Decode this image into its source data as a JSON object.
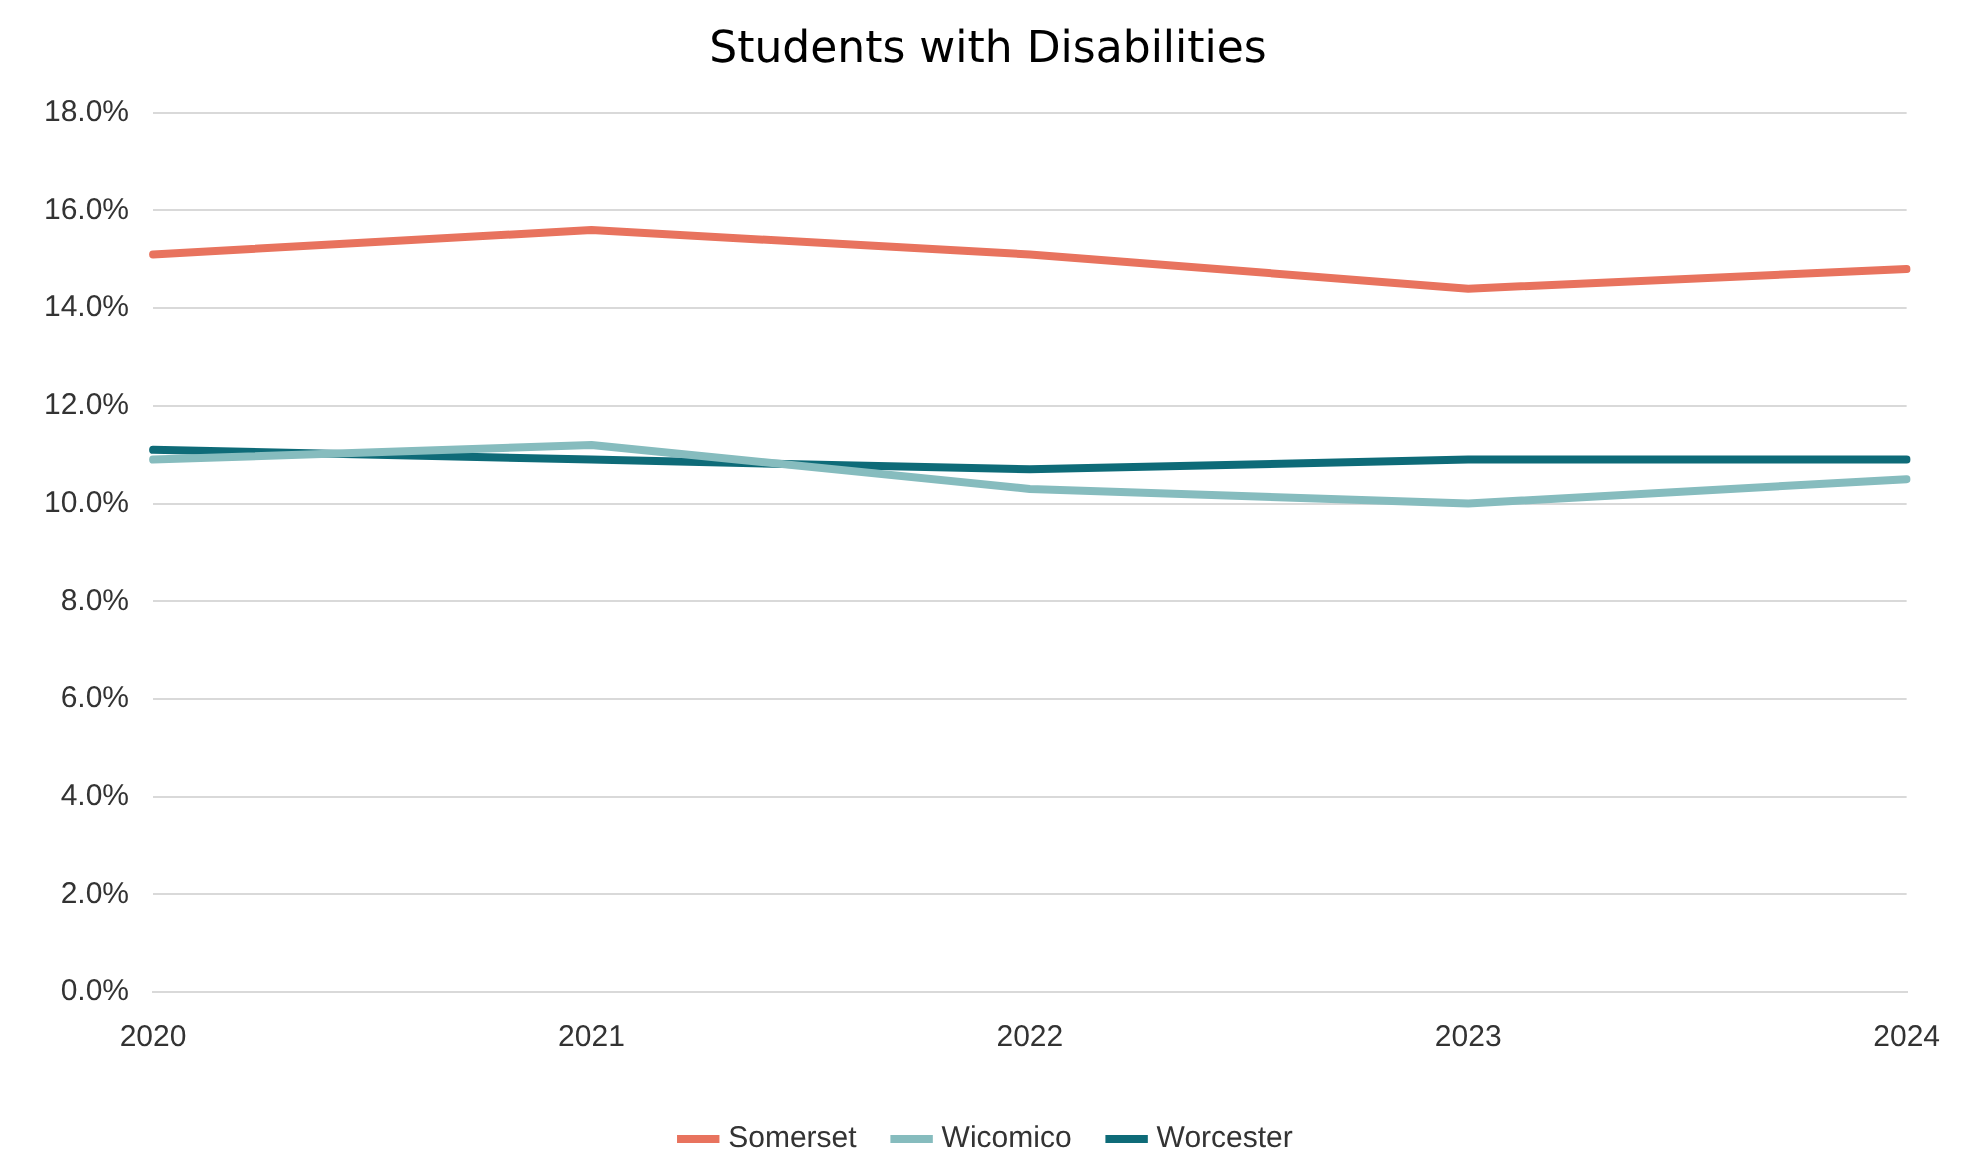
{
  "chart_data": {
    "type": "line",
    "title": "Students with Disabilities",
    "categories": [
      "2020",
      "2021",
      "2022",
      "2023",
      "2024"
    ],
    "series": [
      {
        "name": "Somerset",
        "color": "#e8735e",
        "values": [
          15.1,
          15.6,
          15.1,
          14.4,
          14.8
        ]
      },
      {
        "name": "Wicomico",
        "color": "#86bcbe",
        "values": [
          10.9,
          11.2,
          10.3,
          10.0,
          10.5
        ]
      },
      {
        "name": "Worcester",
        "color": "#0e6b78",
        "values": [
          11.1,
          10.9,
          10.7,
          10.9,
          10.9
        ]
      }
    ],
    "ylim": [
      0,
      18
    ],
    "yticks": [
      {
        "value": 0,
        "label": "0.0%"
      },
      {
        "value": 2,
        "label": "2.0%"
      },
      {
        "value": 4,
        "label": "4.0%"
      },
      {
        "value": 6,
        "label": "6.0%"
      },
      {
        "value": 8,
        "label": "8.0%"
      },
      {
        "value": 10,
        "label": "10.0%"
      },
      {
        "value": 12,
        "label": "12.0%"
      },
      {
        "value": 14,
        "label": "14.0%"
      },
      {
        "value": 16,
        "label": "16.0%"
      },
      {
        "value": 18,
        "label": "18.0%"
      }
    ],
    "grid": "y",
    "legend": "bottom",
    "marker": "none",
    "line_style": "solid"
  }
}
